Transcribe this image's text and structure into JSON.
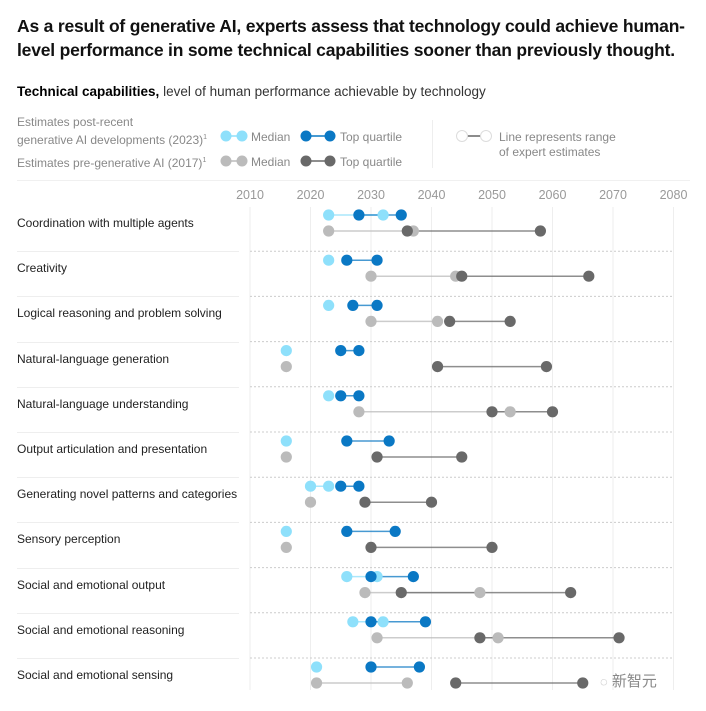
{
  "title": "As a result of generative AI, experts assess that technology could achieve human-level performance in some technical capabilities sooner than previously thought.",
  "subtitle": {
    "bold": "Technical capabilities,",
    "rest": " level of human performance achievable by technology"
  },
  "legend": {
    "post_label_line1": "Estimates post-recent",
    "post_label_line2": "generative AI developments (2023)",
    "pre_label": "Estimates pre-generative AI (2017)",
    "footnote_mark": "1",
    "median": "Median",
    "top_quartile": "Top quartile",
    "range_line1": "Line represents range",
    "range_line2": "of expert estimates"
  },
  "colors": {
    "post_median": "#8ee0fb",
    "post_top": "#0a78c4",
    "pre_median": "#bbbbbb",
    "pre_top": "#696969",
    "gridline": "#eeeeee",
    "row_divider": "#cccccc"
  },
  "watermark": "新智元",
  "chart_data": {
    "type": "scatter",
    "subtype": "dumbbell",
    "title": "Technical capabilities, level of human performance achievable by technology",
    "xlabel": "",
    "ylabel": "",
    "xlim": [
      2010,
      2080
    ],
    "x_ticks": [
      "2010",
      "2020",
      "2030",
      "2040",
      "2050",
      "2060",
      "2070",
      "2080"
    ],
    "grid": true,
    "legend_position": "top",
    "series_names": {
      "post_median": "Estimates post-recent generative AI developments (2023) – Median",
      "post_top": "Estimates post-recent generative AI developments (2023) – Top quartile",
      "pre_median": "Estimates pre-generative AI (2017) – Median",
      "pre_top": "Estimates pre-generative AI (2017) – Top quartile"
    },
    "categories": [
      "Coordination with multiple agents",
      "Creativity",
      "Logical reasoning and problem solving",
      "Natural-language generation",
      "Natural-language understanding",
      "Output articulation and presentation",
      "Generating novel patterns and categories",
      "Sensory perception",
      "Social and emotional output",
      "Social and emotional reasoning",
      "Social and emotional sensing"
    ],
    "rows": [
      {
        "post_median": [
          2023,
          2032
        ],
        "post_top": [
          2028,
          2035
        ],
        "pre_median": [
          2023,
          2037
        ],
        "pre_top": [
          2036,
          2058
        ]
      },
      {
        "post_median": [
          2023,
          2023
        ],
        "post_top": [
          2026,
          2031
        ],
        "pre_median": [
          2030,
          2044
        ],
        "pre_top": [
          2045,
          2066
        ]
      },
      {
        "post_median": [
          2023,
          2023
        ],
        "post_top": [
          2027,
          2031
        ],
        "pre_median": [
          2030,
          2041
        ],
        "pre_top": [
          2043,
          2053
        ]
      },
      {
        "post_median": [
          2016,
          2016
        ],
        "post_top": [
          2025,
          2028
        ],
        "pre_median": [
          2016,
          2016
        ],
        "pre_top": [
          2041,
          2059
        ]
      },
      {
        "post_median": [
          2023,
          2023
        ],
        "post_top": [
          2025,
          2028
        ],
        "pre_median": [
          2028,
          2053
        ],
        "pre_top": [
          2050,
          2060
        ]
      },
      {
        "post_median": [
          2016,
          2016
        ],
        "post_top": [
          2026,
          2033
        ],
        "pre_median": [
          2016,
          2016
        ],
        "pre_top": [
          2031,
          2045
        ]
      },
      {
        "post_median": [
          2020,
          2023
        ],
        "post_top": [
          2025,
          2028
        ],
        "pre_median": [
          2020,
          2020
        ],
        "pre_top": [
          2029,
          2040
        ]
      },
      {
        "post_median": [
          2016,
          2016
        ],
        "post_top": [
          2026,
          2034
        ],
        "pre_median": [
          2016,
          2016
        ],
        "pre_top": [
          2030,
          2050
        ]
      },
      {
        "post_median": [
          2026,
          2031
        ],
        "post_top": [
          2030,
          2037
        ],
        "pre_median": [
          2029,
          2048
        ],
        "pre_top": [
          2035,
          2063
        ]
      },
      {
        "post_median": [
          2027,
          2032
        ],
        "post_top": [
          2030,
          2039
        ],
        "pre_median": [
          2031,
          2051
        ],
        "pre_top": [
          2048,
          2071
        ]
      },
      {
        "post_median": [
          2021,
          2021
        ],
        "post_top": [
          2030,
          2038
        ],
        "pre_median": [
          2021,
          2036
        ],
        "pre_top": [
          2044,
          2065
        ]
      }
    ]
  }
}
